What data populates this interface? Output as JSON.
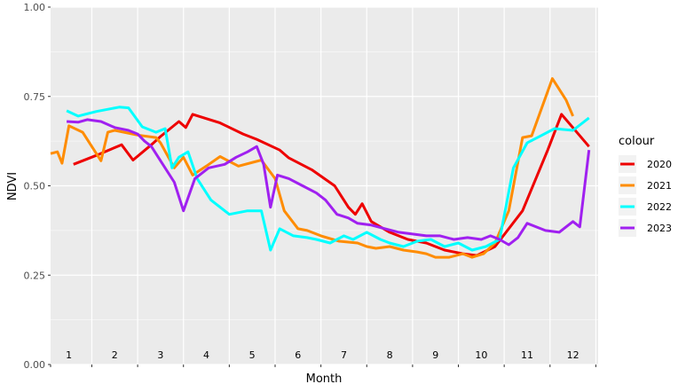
{
  "chart_data": {
    "type": "line",
    "xlabel": "Month",
    "ylabel": "NDVI",
    "ylim": [
      0,
      1
    ],
    "xlim": [
      0.6,
      12.55
    ],
    "y_ticks": [
      "0.00",
      "0.25",
      "0.50",
      "0.75",
      "1.00"
    ],
    "y_tick_values": [
      0,
      0.25,
      0.5,
      0.75,
      1.0
    ],
    "month_labels": [
      "1",
      "2",
      "3",
      "4",
      "5",
      "6",
      "7",
      "8",
      "9",
      "10",
      "11",
      "12"
    ],
    "grid": true,
    "legend_title": "colour",
    "legend_position": "right",
    "series": [
      {
        "name": "2020",
        "color": "#ee0000",
        "x": [
          1.1,
          1.6,
          2.15,
          2.4,
          2.8,
          3.0,
          3.4,
          3.55,
          3.7,
          4.3,
          4.8,
          5.1,
          5.6,
          5.8,
          6.3,
          6.8,
          7.1,
          7.25,
          7.4,
          7.6,
          8.0,
          8.4,
          8.8,
          9.2,
          9.6,
          9.9,
          10.3,
          10.9,
          11.45,
          11.75,
          12.35
        ],
        "y": [
          0.56,
          0.585,
          0.615,
          0.572,
          0.615,
          0.638,
          0.68,
          0.663,
          0.7,
          0.676,
          0.645,
          0.63,
          0.6,
          0.578,
          0.545,
          0.5,
          0.44,
          0.42,
          0.45,
          0.4,
          0.37,
          0.35,
          0.34,
          0.32,
          0.31,
          0.305,
          0.33,
          0.43,
          0.6,
          0.7,
          0.61
        ]
      },
      {
        "name": "2021",
        "color": "#ff8c00",
        "x": [
          0.6,
          0.75,
          0.85,
          1.0,
          1.3,
          1.7,
          1.85,
          2.0,
          2.5,
          2.9,
          3.0,
          3.3,
          3.5,
          3.7,
          4.0,
          4.3,
          4.7,
          5.2,
          5.5,
          5.7,
          6.0,
          6.2,
          6.5,
          6.9,
          7.3,
          7.5,
          7.7,
          8.0,
          8.3,
          8.6,
          8.8,
          9.0,
          9.3,
          9.6,
          9.8,
          10.05,
          10.3,
          10.6,
          10.9,
          11.1,
          11.55,
          11.85,
          12.0
        ],
        "y": [
          0.59,
          0.595,
          0.563,
          0.668,
          0.65,
          0.57,
          0.65,
          0.655,
          0.642,
          0.635,
          0.62,
          0.55,
          0.58,
          0.53,
          0.555,
          0.582,
          0.555,
          0.572,
          0.52,
          0.43,
          0.38,
          0.375,
          0.36,
          0.345,
          0.34,
          0.33,
          0.325,
          0.33,
          0.32,
          0.315,
          0.31,
          0.3,
          0.3,
          0.31,
          0.3,
          0.31,
          0.34,
          0.43,
          0.635,
          0.64,
          0.8,
          0.74,
          0.695
        ]
      },
      {
        "name": "2022",
        "color": "#00ffff",
        "x": [
          0.95,
          1.2,
          1.6,
          2.1,
          2.3,
          2.6,
          2.9,
          3.1,
          3.25,
          3.4,
          3.6,
          3.8,
          4.1,
          4.5,
          4.9,
          5.2,
          5.4,
          5.6,
          5.9,
          6.2,
          6.4,
          6.7,
          7.0,
          7.2,
          7.5,
          7.8,
          8.0,
          8.3,
          8.6,
          8.9,
          9.2,
          9.5,
          9.8,
          10.1,
          10.4,
          10.7,
          11.0,
          11.3,
          11.6,
          12.0,
          12.35
        ],
        "y": [
          0.71,
          0.695,
          0.708,
          0.72,
          0.718,
          0.665,
          0.65,
          0.66,
          0.55,
          0.58,
          0.595,
          0.52,
          0.46,
          0.42,
          0.43,
          0.43,
          0.32,
          0.38,
          0.36,
          0.355,
          0.35,
          0.34,
          0.36,
          0.35,
          0.37,
          0.35,
          0.34,
          0.33,
          0.345,
          0.35,
          0.33,
          0.34,
          0.32,
          0.33,
          0.35,
          0.55,
          0.62,
          0.64,
          0.66,
          0.655,
          0.69
        ]
      },
      {
        "name": "2023",
        "color": "#a020f0",
        "x": [
          0.95,
          1.2,
          1.4,
          1.7,
          2.0,
          2.3,
          2.5,
          2.65,
          2.8,
          3.0,
          3.3,
          3.5,
          3.75,
          4.05,
          4.4,
          4.65,
          4.9,
          5.1,
          5.25,
          5.4,
          5.55,
          5.8,
          6.1,
          6.4,
          6.6,
          6.85,
          7.1,
          7.3,
          7.6,
          7.9,
          8.2,
          8.5,
          8.8,
          9.1,
          9.4,
          9.7,
          10.0,
          10.2,
          10.4,
          10.6,
          10.8,
          11.0,
          11.4,
          11.7,
          12.0,
          12.15,
          12.35
        ],
        "y": [
          0.68,
          0.678,
          0.685,
          0.68,
          0.663,
          0.655,
          0.645,
          0.625,
          0.61,
          0.57,
          0.51,
          0.43,
          0.52,
          0.55,
          0.56,
          0.58,
          0.595,
          0.61,
          0.56,
          0.44,
          0.53,
          0.52,
          0.5,
          0.48,
          0.46,
          0.42,
          0.41,
          0.395,
          0.39,
          0.38,
          0.37,
          0.365,
          0.36,
          0.36,
          0.35,
          0.355,
          0.35,
          0.36,
          0.35,
          0.335,
          0.355,
          0.395,
          0.375,
          0.37,
          0.4,
          0.385,
          0.6
        ]
      }
    ]
  }
}
